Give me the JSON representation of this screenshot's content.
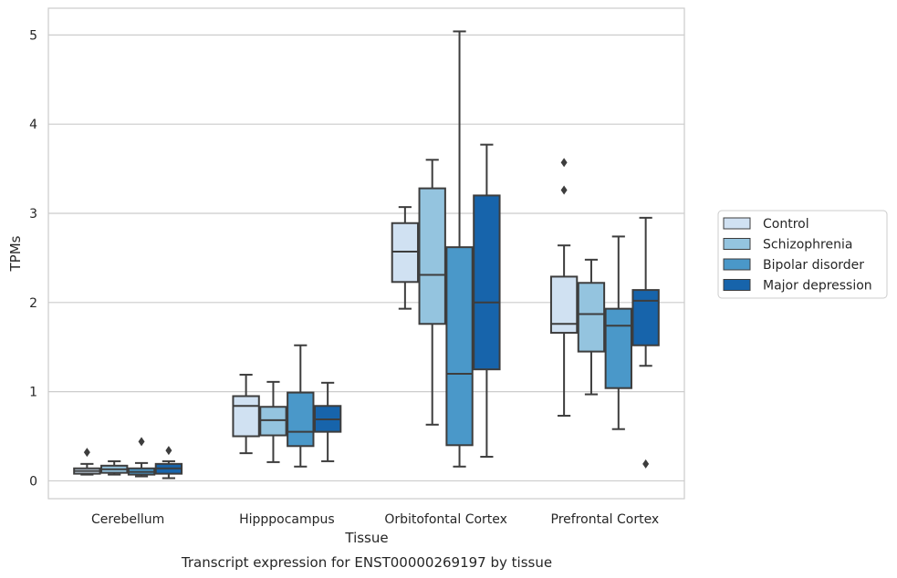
{
  "chart_data": {
    "type": "boxplot",
    "title": "",
    "caption": "Transcript expression for ENST00000269197 by tissue",
    "xlabel": "Tissue",
    "ylabel": "TPMs",
    "ylim": [
      -0.2,
      5.3
    ],
    "yticks": [
      0,
      1,
      2,
      3,
      4,
      5
    ],
    "grid": "horizontal",
    "legend_position": "right",
    "categories": [
      "Cerebellum",
      "Hipppocampus",
      "Orbitofontal Cortex",
      "Prefrontal Cortex"
    ],
    "series": [
      {
        "name": "Control",
        "color": "#d0e1f2",
        "boxes": [
          {
            "whislo": 0.07,
            "q1": 0.08,
            "med": 0.11,
            "q3": 0.14,
            "whishi": 0.19,
            "fliers": [
              0.32
            ]
          },
          {
            "whislo": 0.31,
            "q1": 0.5,
            "med": 0.84,
            "q3": 0.95,
            "whishi": 1.19,
            "fliers": []
          },
          {
            "whislo": 1.93,
            "q1": 2.23,
            "med": 2.57,
            "q3": 2.89,
            "whishi": 3.07,
            "fliers": []
          },
          {
            "whislo": 0.73,
            "q1": 1.66,
            "med": 1.76,
            "q3": 2.29,
            "whishi": 2.64,
            "fliers": [
              3.26,
              3.57
            ]
          }
        ]
      },
      {
        "name": "Schizophrenia",
        "color": "#94c4df",
        "boxes": [
          {
            "whislo": 0.07,
            "q1": 0.09,
            "med": 0.13,
            "q3": 0.17,
            "whishi": 0.22,
            "fliers": []
          },
          {
            "whislo": 0.21,
            "q1": 0.51,
            "med": 0.68,
            "q3": 0.83,
            "whishi": 1.11,
            "fliers": []
          },
          {
            "whislo": 0.63,
            "q1": 1.76,
            "med": 2.31,
            "q3": 3.28,
            "whishi": 3.6,
            "fliers": []
          },
          {
            "whislo": 0.97,
            "q1": 1.45,
            "med": 1.87,
            "q3": 2.22,
            "whishi": 2.48,
            "fliers": []
          }
        ]
      },
      {
        "name": "Bipolar disorder",
        "color": "#4a98c9",
        "boxes": [
          {
            "whislo": 0.05,
            "q1": 0.07,
            "med": 0.1,
            "q3": 0.14,
            "whishi": 0.2,
            "fliers": [
              0.44
            ]
          },
          {
            "whislo": 0.16,
            "q1": 0.39,
            "med": 0.55,
            "q3": 0.99,
            "whishi": 1.52,
            "fliers": []
          },
          {
            "whislo": 0.16,
            "q1": 0.4,
            "med": 1.2,
            "q3": 2.62,
            "whishi": 5.04,
            "fliers": []
          },
          {
            "whislo": 0.58,
            "q1": 1.04,
            "med": 1.74,
            "q3": 1.93,
            "whishi": 2.74,
            "fliers": []
          }
        ]
      },
      {
        "name": "Major depression",
        "color": "#1764ab",
        "boxes": [
          {
            "whislo": 0.03,
            "q1": 0.08,
            "med": 0.14,
            "q3": 0.19,
            "whishi": 0.22,
            "fliers": [
              0.34
            ]
          },
          {
            "whislo": 0.22,
            "q1": 0.55,
            "med": 0.69,
            "q3": 0.84,
            "whishi": 1.1,
            "fliers": []
          },
          {
            "whislo": 0.27,
            "q1": 1.25,
            "med": 2.0,
            "q3": 3.2,
            "whishi": 3.77,
            "fliers": []
          },
          {
            "whislo": 1.29,
            "q1": 1.52,
            "med": 2.02,
            "q3": 2.14,
            "whishi": 2.95,
            "fliers": [
              0.19
            ]
          }
        ]
      }
    ]
  }
}
